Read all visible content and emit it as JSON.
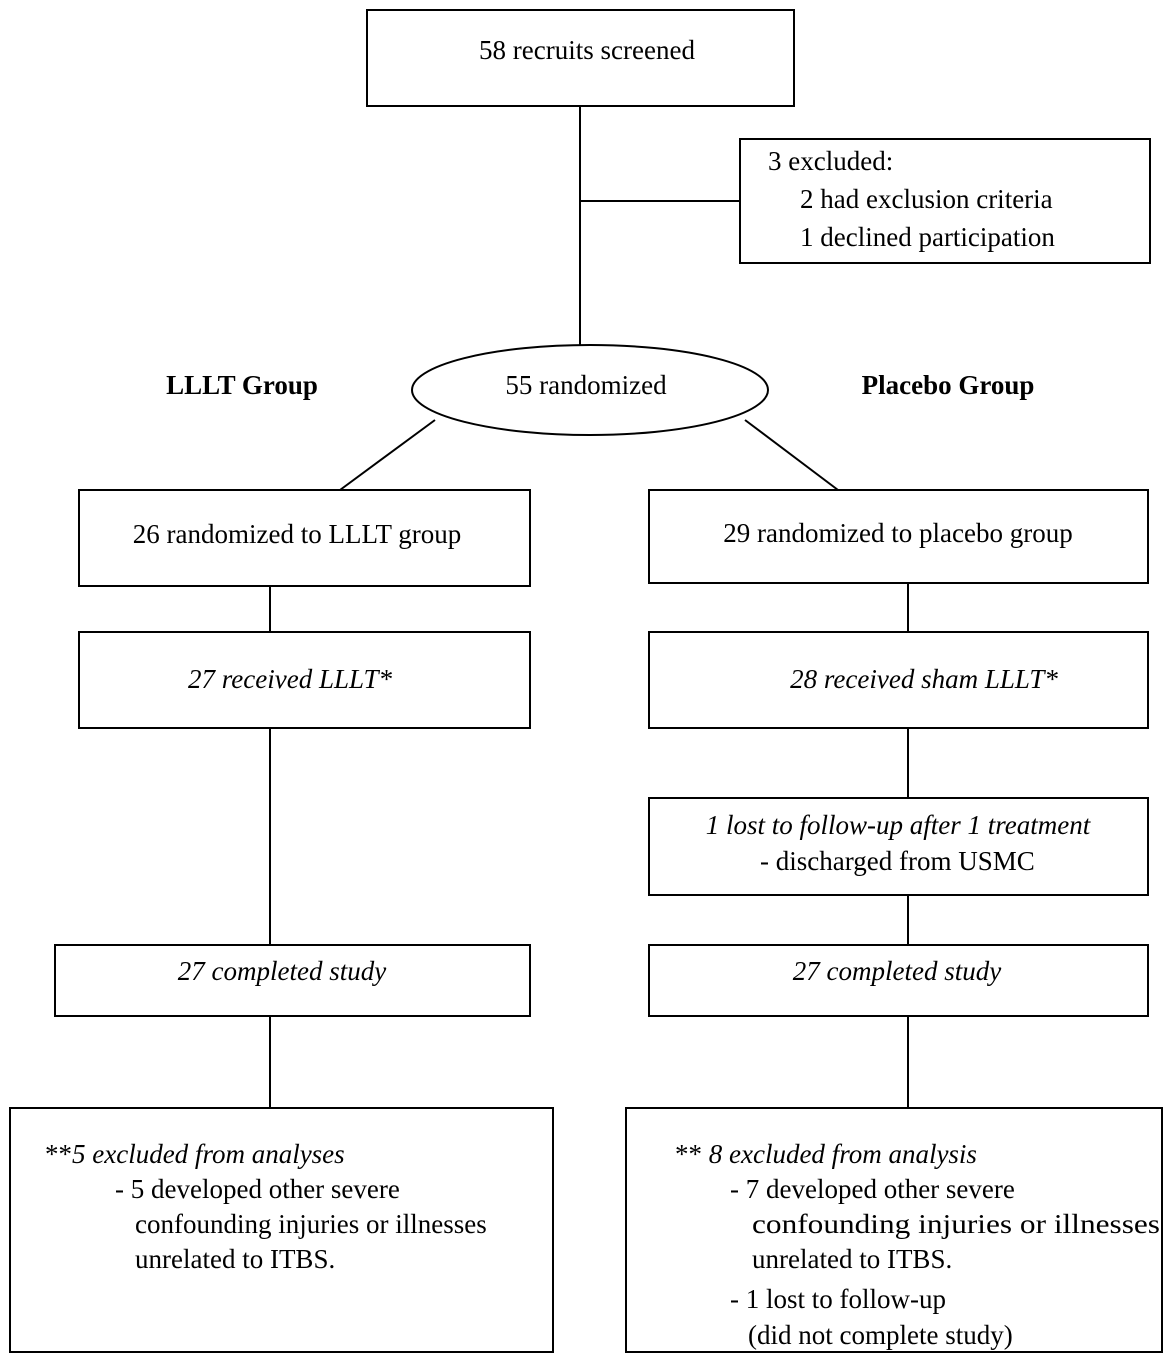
{
  "header": {
    "left_group": "LLLT Group",
    "right_group": "Placebo Group"
  },
  "nodes": [
    {
      "id": "screened",
      "lines": [
        "58 recruits screened"
      ]
    },
    {
      "id": "excluded",
      "lines": [
        "3 excluded:",
        "2 had exclusion criteria",
        "1 declined participation"
      ]
    },
    {
      "id": "randomized",
      "lines": [
        "55 randomized"
      ]
    },
    {
      "id": "lllt_group",
      "lines": [
        "26 randomized to LLLT group"
      ]
    },
    {
      "id": "placebo_group",
      "lines": [
        "29 randomized to placebo group"
      ]
    },
    {
      "id": "lllt_received",
      "lines": [
        "27 received LLLT*"
      ]
    },
    {
      "id": "sham_received",
      "lines": [
        "28 received sham LLLT*"
      ]
    },
    {
      "id": "lost",
      "lines": [
        "1 lost to follow-up after 1 treatment",
        "- discharged from USMC"
      ]
    },
    {
      "id": "lllt_completed",
      "lines": [
        "27 completed study"
      ]
    },
    {
      "id": "placebo_completed",
      "lines": [
        "27 completed study"
      ]
    },
    {
      "id": "lllt_excluded",
      "prefix": "**",
      "lines": [
        "5 excluded from analyses",
        "- 5 developed other severe",
        "confounding injuries or illnesses",
        "unrelated to ITBS."
      ]
    },
    {
      "id": "placebo_excluded",
      "prefix": "** ",
      "lines": [
        "8 excluded from analysis",
        "- 7 developed other severe",
        "confounding injuries or illnesses",
        "unrelated to ITBS.",
        "- 1 lost to follow-up",
        "(did not complete study)"
      ]
    }
  ]
}
